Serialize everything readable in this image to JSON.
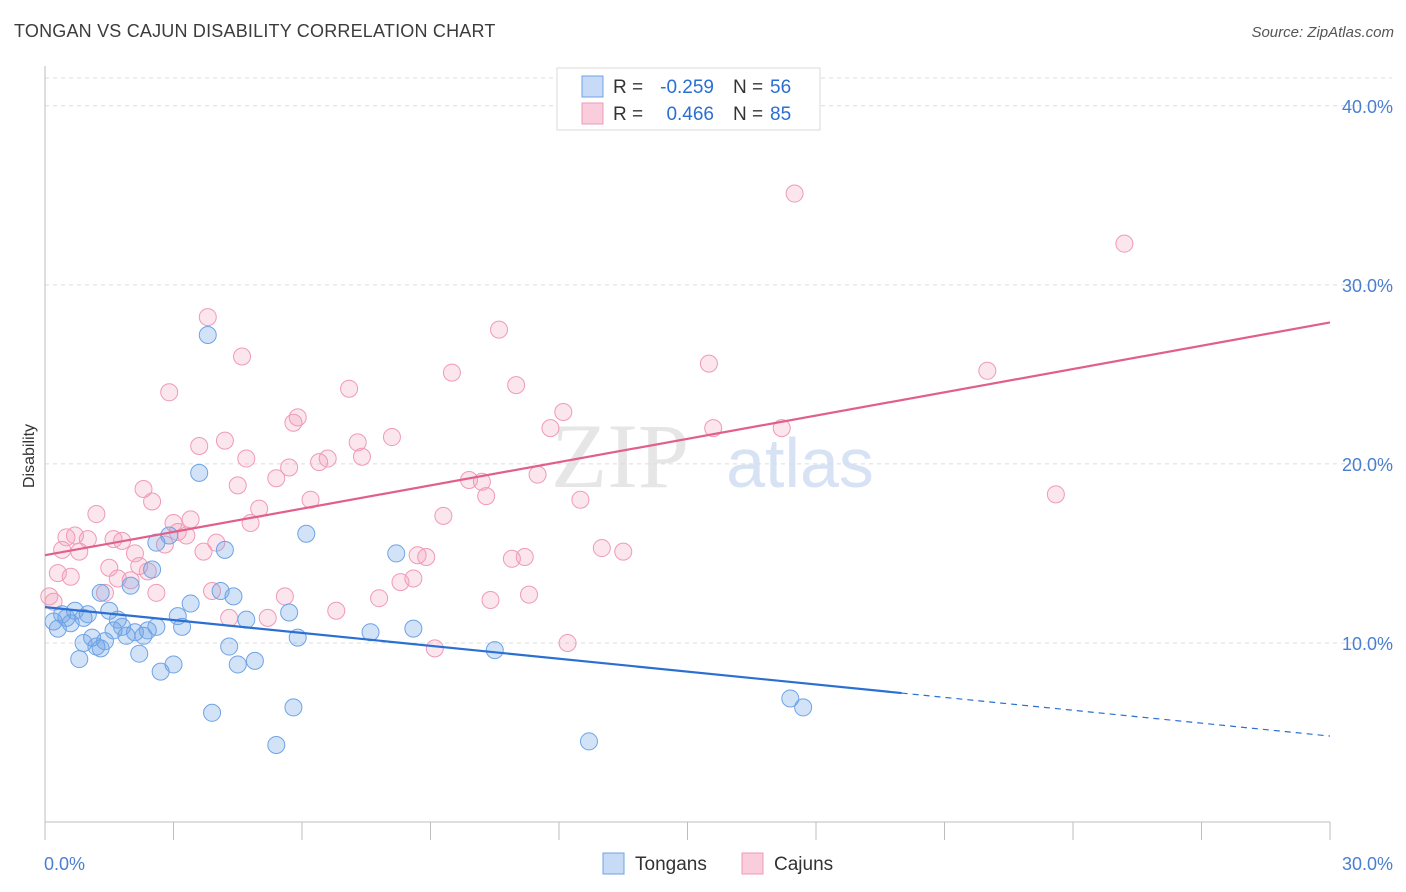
{
  "title": "TONGAN VS CAJUN DISABILITY CORRELATION CHART",
  "source": "Source: ZipAtlas.com",
  "watermark": {
    "zip": "ZIP",
    "atlas": "atlas"
  },
  "colors": {
    "tongans": "#6ea3e6",
    "tongans_line": "#2a6fd1",
    "cajuns": "#f09ab6",
    "cajuns_line": "#e0608a",
    "value_text": "#2a6fd1",
    "tick_text": "#4a7fd0"
  },
  "stats": [
    {
      "r_label": "R =",
      "r_value": "-0.259",
      "n_label": "N =",
      "n_value": "56"
    },
    {
      "r_label": "R =",
      "r_value": "0.466",
      "n_label": "N =",
      "n_value": "85"
    }
  ],
  "legend": {
    "tongans": "Tongans",
    "cajuns": "Cajuns"
  },
  "chart_data": {
    "type": "scatter",
    "title": "TONGAN VS CAJUN DISABILITY CORRELATION CHART",
    "xlabel": "",
    "ylabel": "Disability",
    "xlim": [
      0,
      30
    ],
    "ylim": [
      0,
      42
    ],
    "x_tick_labels": [
      "0.0%",
      "30.0%"
    ],
    "y_ticks": [
      10,
      20,
      30,
      40
    ],
    "y_tick_labels": [
      "10.0%",
      "20.0%",
      "30.0%",
      "40.0%"
    ],
    "grid": "horizontal dashed",
    "legend_position": "bottom-center",
    "series": [
      {
        "name": "Tongans",
        "r": -0.259,
        "n": 56,
        "trend": {
          "x0": 0,
          "y0": 12.0,
          "x1": 20,
          "y1": 7.2,
          "dashed_to_x": 30,
          "dashed_to_y": 4.8
        },
        "points": [
          [
            0.2,
            11.2
          ],
          [
            0.3,
            10.8
          ],
          [
            0.4,
            11.6
          ],
          [
            0.5,
            11.4
          ],
          [
            0.6,
            11.1
          ],
          [
            0.7,
            11.8
          ],
          [
            0.8,
            9.1
          ],
          [
            0.9,
            10.0
          ],
          [
            1.0,
            11.6
          ],
          [
            1.1,
            10.3
          ],
          [
            1.2,
            9.8
          ],
          [
            1.3,
            9.7
          ],
          [
            1.4,
            10.1
          ],
          [
            1.5,
            11.8
          ],
          [
            1.6,
            10.7
          ],
          [
            1.7,
            11.3
          ],
          [
            1.8,
            10.9
          ],
          [
            1.9,
            10.4
          ],
          [
            2.0,
            13.2
          ],
          [
            2.1,
            10.6
          ],
          [
            2.2,
            9.4
          ],
          [
            2.3,
            10.4
          ],
          [
            2.4,
            10.7
          ],
          [
            2.5,
            14.1
          ],
          [
            2.6,
            10.9
          ],
          [
            2.7,
            8.4
          ],
          [
            2.6,
            15.6
          ],
          [
            2.9,
            16.0
          ],
          [
            3.1,
            11.5
          ],
          [
            3.2,
            10.9
          ],
          [
            3.4,
            12.2
          ],
          [
            3.6,
            19.5
          ],
          [
            3.8,
            27.2
          ],
          [
            3.9,
            6.1
          ],
          [
            4.1,
            12.9
          ],
          [
            4.2,
            15.2
          ],
          [
            4.3,
            9.8
          ],
          [
            4.5,
            8.8
          ],
          [
            4.7,
            11.3
          ],
          [
            4.9,
            9.0
          ],
          [
            5.4,
            4.3
          ],
          [
            5.7,
            11.7
          ],
          [
            5.8,
            6.4
          ],
          [
            5.9,
            10.3
          ],
          [
            6.1,
            16.1
          ],
          [
            7.6,
            10.6
          ],
          [
            8.2,
            15.0
          ],
          [
            8.6,
            10.8
          ],
          [
            10.5,
            9.6
          ],
          [
            12.7,
            4.5
          ],
          [
            17.4,
            6.9
          ],
          [
            17.7,
            6.4
          ],
          [
            1.3,
            12.8
          ],
          [
            0.9,
            11.4
          ],
          [
            3.0,
            8.8
          ],
          [
            4.4,
            12.6
          ]
        ]
      },
      {
        "name": "Cajuns",
        "r": 0.466,
        "n": 85,
        "trend": {
          "x0": 0,
          "y0": 14.9,
          "x1": 30,
          "y1": 27.9
        },
        "points": [
          [
            0.1,
            12.6
          ],
          [
            0.2,
            12.3
          ],
          [
            0.3,
            13.9
          ],
          [
            0.4,
            15.2
          ],
          [
            0.5,
            15.9
          ],
          [
            0.6,
            13.7
          ],
          [
            0.7,
            16.0
          ],
          [
            0.8,
            15.1
          ],
          [
            1.0,
            15.8
          ],
          [
            1.2,
            17.2
          ],
          [
            1.4,
            12.8
          ],
          [
            1.5,
            14.2
          ],
          [
            1.6,
            15.8
          ],
          [
            1.7,
            13.6
          ],
          [
            1.8,
            15.7
          ],
          [
            2.0,
            13.5
          ],
          [
            2.1,
            15.0
          ],
          [
            2.2,
            14.3
          ],
          [
            2.3,
            18.6
          ],
          [
            2.4,
            14.0
          ],
          [
            2.5,
            17.9
          ],
          [
            2.6,
            12.8
          ],
          [
            2.8,
            15.5
          ],
          [
            2.9,
            24.0
          ],
          [
            3.0,
            16.7
          ],
          [
            3.1,
            16.2
          ],
          [
            3.3,
            16.0
          ],
          [
            3.4,
            16.9
          ],
          [
            3.6,
            21.0
          ],
          [
            3.7,
            15.1
          ],
          [
            3.8,
            28.2
          ],
          [
            3.9,
            12.9
          ],
          [
            4.0,
            15.6
          ],
          [
            4.2,
            21.3
          ],
          [
            4.3,
            11.4
          ],
          [
            4.5,
            18.8
          ],
          [
            4.6,
            26.0
          ],
          [
            4.7,
            20.3
          ],
          [
            4.8,
            16.7
          ],
          [
            5.0,
            17.5
          ],
          [
            5.2,
            11.4
          ],
          [
            5.4,
            19.2
          ],
          [
            5.6,
            12.6
          ],
          [
            5.7,
            19.8
          ],
          [
            5.8,
            22.3
          ],
          [
            5.9,
            22.6
          ],
          [
            6.2,
            18.0
          ],
          [
            6.4,
            20.1
          ],
          [
            6.6,
            20.3
          ],
          [
            6.8,
            11.8
          ],
          [
            7.1,
            24.2
          ],
          [
            7.3,
            21.2
          ],
          [
            7.4,
            20.4
          ],
          [
            7.8,
            12.5
          ],
          [
            8.1,
            21.5
          ],
          [
            8.3,
            13.4
          ],
          [
            8.6,
            13.6
          ],
          [
            8.7,
            14.9
          ],
          [
            8.9,
            14.8
          ],
          [
            9.1,
            9.7
          ],
          [
            9.3,
            17.1
          ],
          [
            9.5,
            25.1
          ],
          [
            9.9,
            19.1
          ],
          [
            10.2,
            19.0
          ],
          [
            10.3,
            18.2
          ],
          [
            10.4,
            12.4
          ],
          [
            10.6,
            27.5
          ],
          [
            10.9,
            14.7
          ],
          [
            11.0,
            24.4
          ],
          [
            11.2,
            14.8
          ],
          [
            11.3,
            12.7
          ],
          [
            11.5,
            19.4
          ],
          [
            11.8,
            22.0
          ],
          [
            12.1,
            22.9
          ],
          [
            12.2,
            10.0
          ],
          [
            12.5,
            18.0
          ],
          [
            13.0,
            15.3
          ],
          [
            13.5,
            15.1
          ],
          [
            15.5,
            25.6
          ],
          [
            15.6,
            22.0
          ],
          [
            17.2,
            22.0
          ],
          [
            17.5,
            35.1
          ],
          [
            22.0,
            25.2
          ],
          [
            23.6,
            18.3
          ],
          [
            25.2,
            32.3
          ]
        ]
      }
    ]
  }
}
